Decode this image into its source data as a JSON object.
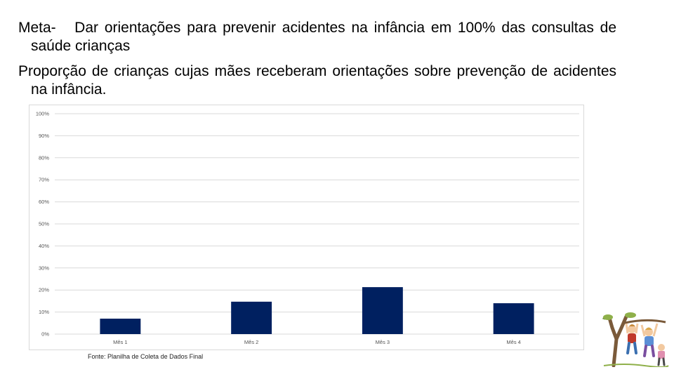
{
  "goal": {
    "prefix": "Meta-",
    "text": "Dar orientações para prevenir acidentes na infância em 100% das consultas de saúde crianças"
  },
  "indicator": {
    "text": "Proporção de crianças cujas mães receberam orientações sobre prevenção de acidentes na infância."
  },
  "source": "Fonte: Planilha de Coleta de Dados Final",
  "chart_data": {
    "type": "bar",
    "categories": [
      "Mês 1",
      "Mês 2",
      "Mês 3",
      "Mês 4"
    ],
    "values": [
      7,
      14.7,
      21.3,
      14
    ],
    "ylim": [
      0,
      100
    ],
    "yticks": [
      "0%",
      "10%",
      "20%",
      "30%",
      "40%",
      "50%",
      "60%",
      "70%",
      "80%",
      "90%",
      "100%"
    ],
    "grid": true,
    "bar_color": "#002060",
    "grid_color": "#d9d9d9"
  },
  "decor": {
    "icon": "children-playing-tree-icon"
  }
}
